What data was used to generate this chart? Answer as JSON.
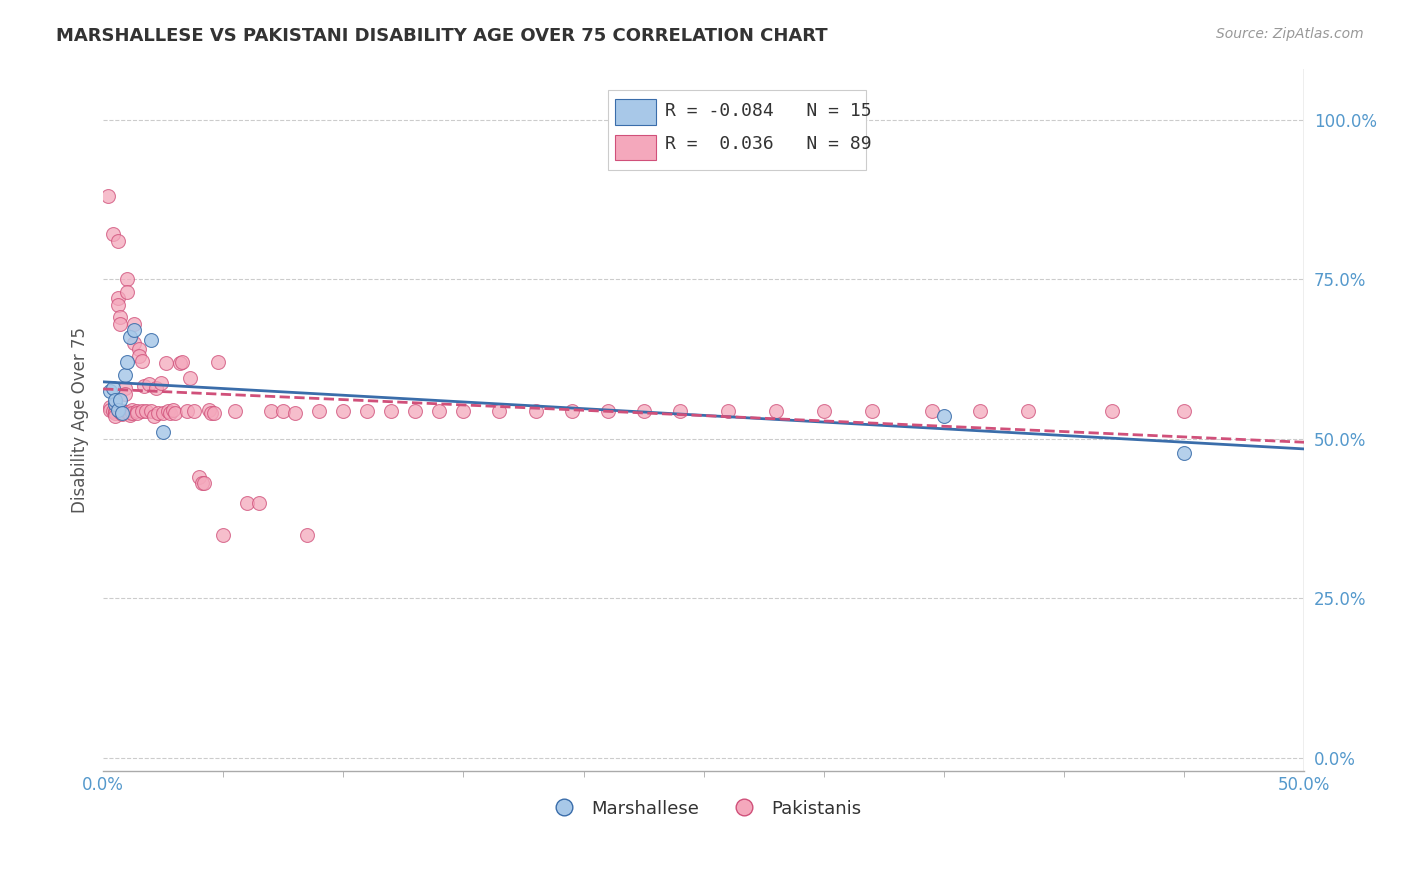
{
  "title": "MARSHALLESE VS PAKISTANI DISABILITY AGE OVER 75 CORRELATION CHART",
  "source": "Source: ZipAtlas.com",
  "ylabel": "Disability Age Over 75",
  "xlim": [
    0.0,
    0.5
  ],
  "ylim": [
    -0.02,
    1.08
  ],
  "legend_blue_r": "-0.084",
  "legend_blue_n": "15",
  "legend_pink_r": "0.036",
  "legend_pink_n": "89",
  "blue_color": "#A8C8E8",
  "pink_color": "#F4A8BC",
  "trendline_blue_color": "#3A6DAA",
  "trendline_pink_color": "#D0507A",
  "marshallese_x": [
    0.003,
    0.004,
    0.005,
    0.005,
    0.006,
    0.007,
    0.008,
    0.009,
    0.01,
    0.011,
    0.013,
    0.02,
    0.025,
    0.35,
    0.45
  ],
  "marshallese_y": [
    0.575,
    0.58,
    0.555,
    0.56,
    0.545,
    0.56,
    0.54,
    0.6,
    0.62,
    0.66,
    0.67,
    0.655,
    0.51,
    0.535,
    0.478
  ],
  "pakistani_x": [
    0.002,
    0.003,
    0.003,
    0.004,
    0.004,
    0.005,
    0.005,
    0.005,
    0.006,
    0.006,
    0.006,
    0.007,
    0.007,
    0.007,
    0.008,
    0.008,
    0.009,
    0.009,
    0.01,
    0.01,
    0.01,
    0.011,
    0.011,
    0.012,
    0.012,
    0.013,
    0.013,
    0.014,
    0.014,
    0.015,
    0.015,
    0.016,
    0.016,
    0.017,
    0.018,
    0.019,
    0.02,
    0.021,
    0.022,
    0.023,
    0.024,
    0.025,
    0.026,
    0.027,
    0.028,
    0.029,
    0.03,
    0.032,
    0.033,
    0.035,
    0.036,
    0.038,
    0.04,
    0.041,
    0.042,
    0.044,
    0.045,
    0.046,
    0.048,
    0.05,
    0.055,
    0.06,
    0.065,
    0.07,
    0.075,
    0.08,
    0.085,
    0.09,
    0.1,
    0.11,
    0.12,
    0.13,
    0.14,
    0.15,
    0.165,
    0.18,
    0.195,
    0.21,
    0.225,
    0.24,
    0.26,
    0.28,
    0.3,
    0.32,
    0.345,
    0.365,
    0.385,
    0.42,
    0.45
  ],
  "pakistani_y": [
    0.88,
    0.55,
    0.545,
    0.82,
    0.543,
    0.544,
    0.54,
    0.535,
    0.81,
    0.72,
    0.71,
    0.69,
    0.68,
    0.542,
    0.544,
    0.539,
    0.58,
    0.57,
    0.75,
    0.73,
    0.542,
    0.54,
    0.537,
    0.545,
    0.54,
    0.68,
    0.65,
    0.544,
    0.54,
    0.64,
    0.63,
    0.622,
    0.543,
    0.582,
    0.544,
    0.585,
    0.544,
    0.536,
    0.579,
    0.54,
    0.587,
    0.54,
    0.619,
    0.543,
    0.54,
    0.545,
    0.54,
    0.619,
    0.62,
    0.543,
    0.595,
    0.543,
    0.44,
    0.43,
    0.43,
    0.545,
    0.54,
    0.54,
    0.62,
    0.35,
    0.544,
    0.4,
    0.4,
    0.544,
    0.544,
    0.54,
    0.35,
    0.544,
    0.544,
    0.544,
    0.544,
    0.544,
    0.544,
    0.544,
    0.544,
    0.544,
    0.544,
    0.544,
    0.544,
    0.544,
    0.544,
    0.544,
    0.544,
    0.544,
    0.544,
    0.544,
    0.544,
    0.544,
    0.544
  ]
}
